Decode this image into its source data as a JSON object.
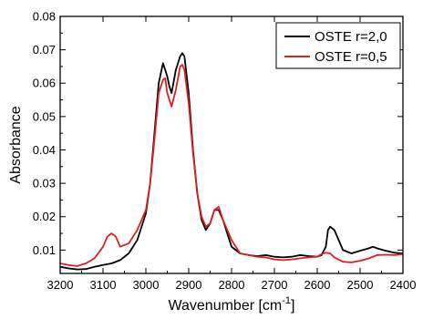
{
  "chart_data": {
    "type": "line",
    "xlabel": "Wavenumber [cm",
    "xlabel_sup": "-1",
    "xlabel_suffix": "]",
    "ylabel": "Absorbance",
    "xlim": [
      3200,
      2400
    ],
    "ylim": [
      0.003,
      0.08
    ],
    "x_reversed": true,
    "x_ticks": [
      "3200",
      "3100",
      "3000",
      "2900",
      "2800",
      "2700",
      "2600",
      "2500",
      "2400"
    ],
    "y_ticks": [
      "0.01",
      "0.02",
      "0.03",
      "0.04",
      "0.05",
      "0.06",
      "0.07",
      "0.08"
    ],
    "legend_position": "top-right",
    "grid": false,
    "series": [
      {
        "name": "OSTE r=2,0",
        "color": "#000000",
        "x": [
          3200,
          3180,
          3160,
          3140,
          3120,
          3100,
          3080,
          3060,
          3040,
          3020,
          3000,
          2990,
          2980,
          2970,
          2960,
          2950,
          2945,
          2940,
          2930,
          2920,
          2915,
          2910,
          2900,
          2890,
          2880,
          2870,
          2860,
          2850,
          2840,
          2830,
          2820,
          2800,
          2780,
          2760,
          2740,
          2720,
          2700,
          2680,
          2660,
          2640,
          2620,
          2600,
          2590,
          2580,
          2575,
          2570,
          2560,
          2550,
          2540,
          2520,
          2500,
          2480,
          2470,
          2460,
          2440,
          2420,
          2400
        ],
        "y": [
          0.005,
          0.0045,
          0.0042,
          0.0043,
          0.005,
          0.0055,
          0.006,
          0.007,
          0.009,
          0.013,
          0.021,
          0.03,
          0.045,
          0.06,
          0.066,
          0.062,
          0.059,
          0.057,
          0.064,
          0.068,
          0.069,
          0.068,
          0.057,
          0.04,
          0.027,
          0.019,
          0.016,
          0.018,
          0.022,
          0.022,
          0.019,
          0.011,
          0.009,
          0.0085,
          0.0082,
          0.0085,
          0.008,
          0.0078,
          0.008,
          0.0085,
          0.0082,
          0.008,
          0.0085,
          0.011,
          0.016,
          0.017,
          0.016,
          0.013,
          0.01,
          0.009,
          0.0098,
          0.0105,
          0.011,
          0.0105,
          0.0098,
          0.0092,
          0.009
        ]
      },
      {
        "name": "OSTE r=0,5",
        "color": "#e02020",
        "x": [
          3200,
          3180,
          3160,
          3140,
          3120,
          3100,
          3090,
          3080,
          3070,
          3060,
          3040,
          3020,
          3000,
          2990,
          2980,
          2970,
          2960,
          2955,
          2950,
          2940,
          2930,
          2920,
          2915,
          2910,
          2900,
          2890,
          2880,
          2870,
          2860,
          2850,
          2840,
          2830,
          2820,
          2800,
          2780,
          2760,
          2740,
          2720,
          2700,
          2680,
          2660,
          2640,
          2620,
          2600,
          2590,
          2580,
          2570,
          2560,
          2540,
          2520,
          2500,
          2480,
          2460,
          2440,
          2420,
          2400
        ],
        "y": [
          0.006,
          0.0055,
          0.0052,
          0.006,
          0.0075,
          0.011,
          0.014,
          0.015,
          0.014,
          0.011,
          0.012,
          0.016,
          0.022,
          0.03,
          0.043,
          0.057,
          0.061,
          0.0615,
          0.057,
          0.053,
          0.058,
          0.065,
          0.0655,
          0.064,
          0.054,
          0.039,
          0.027,
          0.02,
          0.017,
          0.018,
          0.022,
          0.023,
          0.019,
          0.013,
          0.009,
          0.0085,
          0.008,
          0.0078,
          0.0072,
          0.007,
          0.0072,
          0.0075,
          0.0078,
          0.008,
          0.0088,
          0.0092,
          0.009,
          0.0078,
          0.0065,
          0.0063,
          0.0068,
          0.0075,
          0.0085,
          0.0086,
          0.0085,
          0.0088
        ]
      }
    ]
  }
}
